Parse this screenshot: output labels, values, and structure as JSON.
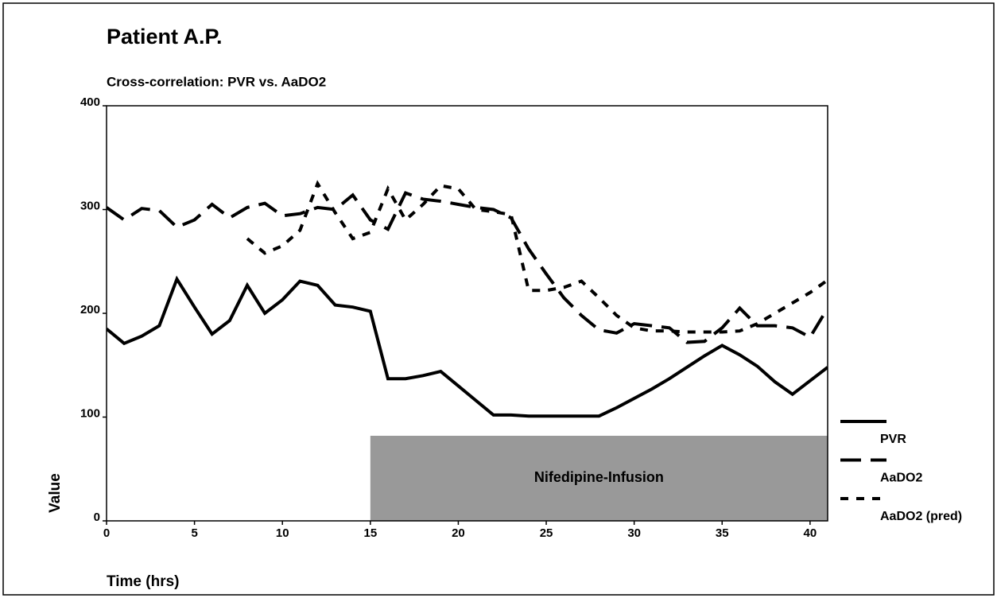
{
  "chart_data": {
    "type": "line",
    "title": "Patient A.P.",
    "subtitle": "Cross-correlation: PVR vs. AaDO2",
    "x_label": "Time (hrs)",
    "y_label": "Value",
    "x": [
      0,
      1,
      2,
      3,
      4,
      5,
      6,
      7,
      8,
      9,
      10,
      11,
      12,
      13,
      14,
      15,
      16,
      17,
      18,
      19,
      20,
      21,
      22,
      23,
      24,
      25,
      26,
      27,
      28,
      29,
      30,
      31,
      32,
      33,
      34,
      35,
      36,
      37,
      38,
      39,
      40,
      41
    ],
    "series": [
      {
        "name": "PVR",
        "color": "#000000",
        "dash": "solid",
        "values": [
          185,
          171,
          178,
          188,
          233,
          206,
          180,
          193,
          227,
          200,
          213,
          231,
          227,
          208,
          206,
          202,
          137,
          137,
          140,
          144,
          130,
          116,
          102,
          102,
          101,
          101,
          101,
          101,
          101,
          109,
          118,
          127,
          137,
          148,
          159,
          169,
          160,
          149,
          134,
          122,
          135,
          148
        ]
      },
      {
        "name": "AaDO2",
        "color": "#000000",
        "dash": "long",
        "values": [
          302,
          290,
          301,
          299,
          283,
          290,
          305,
          292,
          302,
          306,
          294,
          296,
          302,
          300,
          314,
          290,
          281,
          316,
          310,
          308,
          305,
          302,
          300,
          292,
          262,
          238,
          215,
          198,
          184,
          181,
          190,
          188,
          186,
          172,
          173,
          186,
          205,
          188,
          188,
          186,
          177,
          205
        ]
      },
      {
        "name": "AaDO2 (pred)",
        "color": "#000000",
        "dash": "short",
        "values": [
          null,
          null,
          null,
          null,
          null,
          null,
          null,
          null,
          272,
          258,
          265,
          280,
          325,
          297,
          272,
          278,
          320,
          290,
          305,
          323,
          320,
          300,
          298,
          295,
          222,
          222,
          225,
          231,
          215,
          198,
          186,
          183,
          183,
          182,
          182,
          182,
          183,
          190,
          200,
          210,
          220,
          232
        ]
      }
    ],
    "shade": {
      "label": "Nifedipine-Infusion",
      "x": [
        15,
        41
      ],
      "y": [
        0,
        82
      ],
      "color": "#999999"
    },
    "xlim": [
      0,
      41
    ],
    "ylim": [
      0,
      400
    ],
    "xticks": [
      0,
      5,
      10,
      15,
      20,
      25,
      30,
      35,
      40
    ],
    "yticks": [
      0,
      100,
      200,
      300,
      400
    ],
    "legend": "right"
  }
}
